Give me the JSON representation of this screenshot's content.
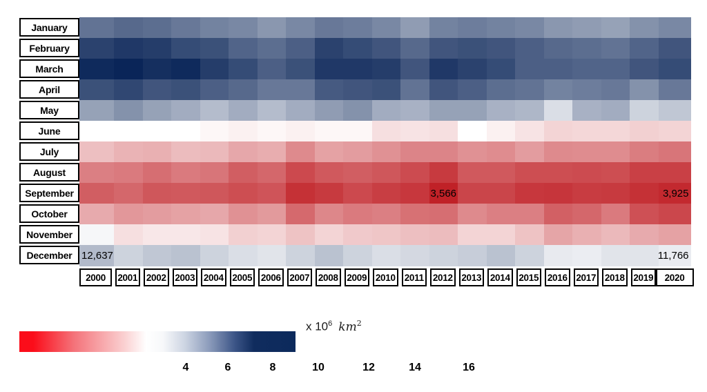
{
  "chart_data": {
    "type": "heatmap",
    "title": "",
    "x_categories": [
      "2000",
      "2001",
      "2002",
      "2003",
      "2004",
      "2005",
      "2006",
      "2007",
      "2008",
      "2009",
      "2010",
      "2011",
      "2012",
      "2013",
      "2014",
      "2015",
      "2016",
      "2017",
      "2018",
      "2019",
      "2020"
    ],
    "y_categories": [
      "January",
      "February",
      "March",
      "April",
      "May",
      "June",
      "July",
      "August",
      "September",
      "October",
      "November",
      "December"
    ],
    "unit": "x 10^6 km^2",
    "legend_position": "bottom-left",
    "grid": "off",
    "rows": [
      {
        "month": "January",
        "values": [
          14.0,
          14.2,
          14.1,
          13.9,
          13.7,
          13.6,
          13.3,
          13.6,
          13.9,
          13.8,
          13.6,
          13.2,
          13.7,
          13.8,
          13.7,
          13.6,
          13.3,
          13.2,
          13.1,
          13.4,
          13.6
        ]
      },
      {
        "month": "February",
        "values": [
          15.0,
          15.2,
          15.1,
          14.8,
          14.7,
          14.3,
          14.1,
          14.4,
          15.0,
          14.8,
          14.6,
          14.2,
          14.6,
          14.7,
          14.6,
          14.4,
          14.2,
          14.1,
          14.0,
          14.3,
          14.6
        ]
      },
      {
        "month": "March",
        "values": [
          15.5,
          15.6,
          15.4,
          15.5,
          15.1,
          14.8,
          14.4,
          14.7,
          15.2,
          15.2,
          15.1,
          14.6,
          15.2,
          15.0,
          14.8,
          14.4,
          14.4,
          14.3,
          14.3,
          14.6,
          14.8
        ]
      },
      {
        "month": "April",
        "values": [
          14.7,
          14.9,
          14.6,
          14.7,
          14.4,
          14.2,
          13.9,
          13.9,
          14.5,
          14.6,
          14.7,
          14.0,
          14.6,
          14.4,
          14.1,
          14.0,
          13.7,
          13.8,
          13.9,
          13.4,
          13.9
        ]
      },
      {
        "month": "May",
        "values": [
          13.1,
          13.4,
          13.1,
          12.9,
          12.6,
          12.9,
          12.6,
          12.9,
          13.2,
          13.4,
          12.9,
          12.8,
          13.1,
          13.1,
          12.8,
          12.7,
          12.0,
          12.8,
          12.9,
          12.2,
          12.4
        ]
      },
      {
        "month": "June",
        "values": [
          11.5,
          11.5,
          11.5,
          11.5,
          11.4,
          11.3,
          11.4,
          11.3,
          11.4,
          11.4,
          10.9,
          11.0,
          10.9,
          11.5,
          11.3,
          11.0,
          10.6,
          10.7,
          10.7,
          10.5,
          10.6
        ]
      },
      {
        "month": "July",
        "values": [
          10.0,
          9.6,
          9.5,
          9.9,
          9.8,
          9.2,
          9.4,
          8.1,
          9.0,
          8.8,
          8.4,
          7.9,
          7.9,
          8.4,
          8.2,
          8.8,
          8.1,
          8.2,
          8.2,
          7.6,
          7.3
        ]
      },
      {
        "month": "August",
        "values": [
          7.7,
          7.5,
          7.0,
          7.5,
          7.3,
          6.3,
          6.7,
          5.4,
          6.1,
          6.3,
          6.0,
          5.5,
          4.7,
          6.1,
          6.1,
          5.6,
          5.6,
          5.5,
          5.6,
          5.0,
          5.0
        ]
      },
      {
        "month": "September",
        "values": [
          6.3,
          6.7,
          6.0,
          6.1,
          6.0,
          5.6,
          5.9,
          4.3,
          4.7,
          5.4,
          4.9,
          4.6,
          3.566,
          5.2,
          5.2,
          4.6,
          4.5,
          4.8,
          4.7,
          4.3,
          3.925
        ]
      },
      {
        "month": "October",
        "values": [
          9.3,
          8.6,
          8.8,
          9.0,
          9.2,
          8.4,
          8.7,
          6.8,
          8.0,
          7.5,
          7.7,
          7.1,
          7.0,
          8.1,
          7.7,
          7.7,
          6.4,
          6.7,
          7.5,
          5.7,
          5.3
        ]
      },
      {
        "month": "November",
        "values": [
          11.6,
          10.9,
          11.1,
          11.1,
          11.0,
          10.5,
          10.6,
          10.1,
          10.6,
          10.3,
          10.2,
          10.0,
          9.9,
          10.6,
          10.6,
          10.1,
          9.1,
          9.5,
          9.8,
          9.3,
          9.0
        ]
      },
      {
        "month": "December",
        "values": [
          12.637,
          12.2,
          12.4,
          12.5,
          12.2,
          12.0,
          11.9,
          12.2,
          12.5,
          12.2,
          12.0,
          12.1,
          12.2,
          12.3,
          12.5,
          12.2,
          11.8,
          11.75,
          11.9,
          11.9,
          11.766
        ]
      }
    ],
    "annotations": [
      {
        "month": "December",
        "year": "2000",
        "text": "12,637",
        "align": "left"
      },
      {
        "month": "September",
        "year": "2012",
        "text": "3,566",
        "align": "center"
      },
      {
        "month": "September",
        "year": "2020",
        "text": "3,925",
        "align": "right"
      },
      {
        "month": "December",
        "year": "2020",
        "text": "11,766",
        "align": "right"
      }
    ],
    "colormap": {
      "min": 3.5,
      "midpoint": 11.5,
      "max": 15.6,
      "red": "#C02026",
      "white": "#FFFFFF",
      "blue": "#0A2558",
      "bar_red": "#FB0D1A",
      "bar_navy": "#0C2A5C"
    },
    "colorbar": {
      "ticks": [
        "4",
        "6",
        "8",
        "10",
        "12",
        "14",
        "16"
      ],
      "unit_prefix": "x 10",
      "unit_exponent": "6",
      "unit_base": "km",
      "unit_base_exponent": "2"
    }
  }
}
